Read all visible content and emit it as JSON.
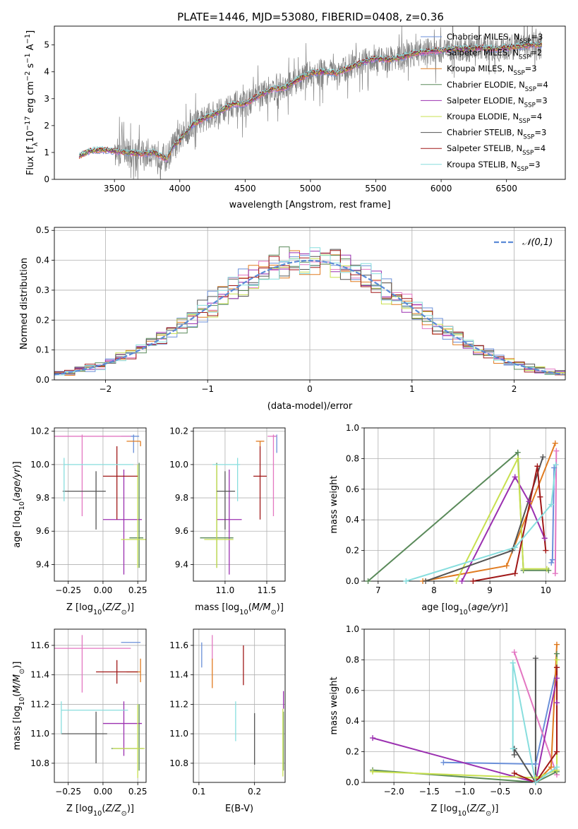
{
  "title": "PLATE=1446, MJD=53080, FIBERID=0408, z=0.36",
  "colors": {
    "Chabrier MILES": "#6a8fd8",
    "Salpeter MILES": "#e377c2",
    "Kroupa MILES": "#e07b20",
    "Chabrier ELODIE": "#5a8a5a",
    "Salpeter ELODIE": "#9b30b0",
    "Kroupa ELODIE": "#c8e050",
    "Chabrier STELIB": "#555555",
    "Salpeter STELIB": "#a01818",
    "Kroupa STELIB": "#88dede",
    "data": "#808080",
    "normal": "#5b8ad6"
  },
  "chart_data": [
    {
      "id": "spectrum",
      "type": "line",
      "title": "PLATE=1446, MJD=53080, FIBERID=0408, z=0.36",
      "xlabel": "wavelength [Angstrom, rest frame]",
      "ylabel": "Flux [f_λ 10^-17 erg cm^-2 s^-1 A^-1]",
      "xlim": [
        3040,
        6950
      ],
      "ylim": [
        0,
        5.7
      ],
      "xticks": [
        3500,
        4000,
        4500,
        5000,
        5500,
        6000,
        6500
      ],
      "yticks": [
        0,
        1,
        2,
        3,
        4,
        5
      ],
      "legend_position": "right",
      "legend": [
        "Chabrier MILES, N_SSP=3",
        "Salpeter MILES, N_SSP=2",
        "Kroupa MILES, N_SSP=3",
        "Chabrier ELODIE, N_SSP=4",
        "Salpeter ELODIE, N_SSP=3",
        "Kroupa ELODIE, N_SSP=4",
        "Chabrier STELIB, N_SSP=3",
        "Salpeter STELIB, N_SSP=4",
        "Kroupa STELIB, N_SSP=3"
      ],
      "model_continuum": {
        "x": [
          3230,
          3300,
          3400,
          3500,
          3600,
          3700,
          3800,
          3900,
          3950,
          4000,
          4100,
          4200,
          4300,
          4400,
          4500,
          4600,
          4700,
          4800,
          4900,
          5000,
          5100,
          5200,
          5300,
          5400,
          5500,
          5600,
          5700,
          5800,
          5900,
          6000,
          6100,
          6200,
          6300,
          6400,
          6500,
          6600,
          6700,
          6770
        ],
        "y": [
          0.85,
          1.05,
          1.1,
          1.05,
          1.0,
          0.95,
          1.0,
          0.75,
          1.25,
          1.45,
          2.05,
          2.3,
          2.5,
          2.8,
          2.8,
          3.1,
          3.35,
          3.4,
          3.7,
          3.95,
          4.0,
          3.95,
          4.15,
          4.35,
          4.5,
          4.45,
          4.55,
          4.7,
          4.75,
          4.8,
          4.85,
          4.85,
          4.9,
          4.85,
          4.9,
          4.95,
          5.0,
          5.0
        ]
      },
      "data_noise_start": 3500
    },
    {
      "id": "residuals",
      "type": "bar",
      "xlabel": "(data-model)/error",
      "ylabel": "Normed distribution",
      "xlim": [
        -2.5,
        2.5
      ],
      "ylim": [
        0,
        0.51
      ],
      "xticks": [
        -2,
        -1,
        0,
        1,
        2
      ],
      "yticks": [
        0.0,
        0.1,
        0.2,
        0.3,
        0.4,
        0.5
      ],
      "legend": [
        "𝒩(0,1)"
      ],
      "legend_position": "upper right",
      "bin_width": 0.1
    },
    {
      "id": "age-vs-Z",
      "type": "scatter",
      "xlabel": "Z [log10(Z/Z_sun)]",
      "ylabel": "age  [log10(age/yr)]",
      "xlim": [
        -0.35,
        0.31
      ],
      "ylim": [
        9.3,
        10.22
      ],
      "xticks": [
        -0.25,
        0.0,
        0.25
      ],
      "yticks": [
        9.4,
        9.6,
        9.8,
        10.0,
        10.2
      ],
      "points": [
        {
          "model": "Chabrier MILES",
          "x": 0.22,
          "y": 10.17,
          "xerr": [
            0.09,
            0.04
          ],
          "yerr": [
            0.1,
            0.01
          ]
        },
        {
          "model": "Salpeter MILES",
          "x": -0.15,
          "y": 10.17,
          "xerr": [
            0.23,
            0.35
          ],
          "yerr": [
            0.48,
            0.01
          ]
        },
        {
          "model": "Kroupa MILES",
          "x": 0.27,
          "y": 10.14,
          "xerr": [
            0.1,
            0.0
          ],
          "yerr": [
            0.03,
            0.0
          ]
        },
        {
          "model": "Chabrier ELODIE",
          "x": 0.26,
          "y": 9.56,
          "xerr": [
            0.07,
            0.03
          ],
          "yerr": [
            0.18,
            0.45
          ]
        },
        {
          "model": "Salpeter ELODIE",
          "x": 0.15,
          "y": 9.67,
          "xerr": [
            0.15,
            0.13
          ],
          "yerr": [
            0.33,
            0.3
          ]
        },
        {
          "model": "Kroupa ELODIE",
          "x": 0.25,
          "y": 9.55,
          "xerr": [
            0.12,
            0.06
          ],
          "yerr": [
            0.17,
            0.45
          ]
        },
        {
          "model": "Chabrier STELIB",
          "x": -0.05,
          "y": 9.84,
          "xerr": [
            0.24,
            0.07
          ],
          "yerr": [
            0.23,
            0.12
          ]
        },
        {
          "model": "Salpeter STELIB",
          "x": 0.1,
          "y": 9.93,
          "xerr": [
            0.1,
            0.15
          ],
          "yerr": [
            0.26,
            0.18
          ]
        },
        {
          "model": "Kroupa STELIB",
          "x": -0.28,
          "y": 10.0,
          "xerr": [
            0.0,
            0.5
          ],
          "yerr": [
            0.22,
            0.04
          ]
        }
      ]
    },
    {
      "id": "age-vs-mass",
      "type": "scatter",
      "xlabel": "mass [log10(M/M_sun)]",
      "ylabel": "",
      "xlim": [
        10.62,
        11.72
      ],
      "ylim": [
        9.3,
        10.22
      ],
      "xticks": [
        11.0,
        11.5
      ],
      "yticks": [
        9.4,
        9.6,
        9.8,
        10.0,
        10.2
      ],
      "points": [
        {
          "model": "Chabrier MILES",
          "x": 11.62,
          "y": 10.17,
          "xerr": [
            0.05,
            0.0
          ],
          "yerr": [
            0.1,
            0.01
          ]
        },
        {
          "model": "Salpeter MILES",
          "x": 11.58,
          "y": 10.17,
          "xerr": [
            0.07,
            0.04
          ],
          "yerr": [
            0.48,
            0.01
          ]
        },
        {
          "model": "Kroupa MILES",
          "x": 11.42,
          "y": 10.14,
          "xerr": [
            0.05,
            0.05
          ],
          "yerr": [
            0.03,
            0.0
          ]
        },
        {
          "model": "Chabrier ELODIE",
          "x": 10.9,
          "y": 9.56,
          "xerr": [
            0.2,
            0.2
          ],
          "yerr": [
            0.18,
            0.45
          ]
        },
        {
          "model": "Salpeter ELODIE",
          "x": 11.05,
          "y": 9.67,
          "xerr": [
            0.15,
            0.15
          ],
          "yerr": [
            0.33,
            0.3
          ]
        },
        {
          "model": "Kroupa ELODIE",
          "x": 10.9,
          "y": 9.55,
          "xerr": [
            0.15,
            0.2
          ],
          "yerr": [
            0.17,
            0.45
          ]
        },
        {
          "model": "Chabrier STELIB",
          "x": 11.0,
          "y": 9.84,
          "xerr": [
            0.1,
            0.12
          ],
          "yerr": [
            0.23,
            0.12
          ]
        },
        {
          "model": "Salpeter STELIB",
          "x": 11.42,
          "y": 9.93,
          "xerr": [
            0.08,
            0.08
          ],
          "yerr": [
            0.26,
            0.18
          ]
        },
        {
          "model": "Kroupa STELIB",
          "x": 11.15,
          "y": 10.0,
          "xerr": [
            0.3,
            0.03
          ],
          "yerr": [
            0.22,
            0.04
          ]
        }
      ]
    },
    {
      "id": "weight-vs-age",
      "type": "line",
      "xlabel": "age  [log10(age/yr)]",
      "ylabel": "mass weight",
      "xlim": [
        6.75,
        10.35
      ],
      "ylim": [
        0,
        1
      ],
      "xticks": [
        7,
        8,
        9,
        10
      ],
      "yticks": [
        0.0,
        0.2,
        0.4,
        0.6,
        0.8,
        1.0
      ],
      "series": [
        {
          "model": "Chabrier MILES",
          "x": [
            10.1,
            10.12,
            10.15
          ],
          "y": [
            0.12,
            0.14,
            0.74
          ]
        },
        {
          "model": "Salpeter MILES",
          "x": [
            10.17,
            10.19
          ],
          "y": [
            0.05,
            0.85
          ]
        },
        {
          "model": "Kroupa MILES",
          "x": [
            7.8,
            9.3,
            10.17
          ],
          "y": [
            0.0,
            0.1,
            0.9
          ]
        },
        {
          "model": "Chabrier ELODIE",
          "x": [
            6.82,
            9.5,
            9.6,
            10.05
          ],
          "y": [
            0.0,
            0.84,
            0.07,
            0.07
          ]
        },
        {
          "model": "Salpeter ELODIE",
          "x": [
            8.5,
            9.45,
            9.7,
            9.98
          ],
          "y": [
            0.0,
            0.68,
            0.52,
            0.28
          ]
        },
        {
          "model": "Kroupa ELODIE",
          "x": [
            8.4,
            9.5,
            9.6,
            10.02
          ],
          "y": [
            0.0,
            0.8,
            0.08,
            0.08
          ]
        },
        {
          "model": "Chabrier STELIB",
          "x": [
            7.85,
            9.4,
            9.95
          ],
          "y": [
            0.0,
            0.2,
            0.81
          ]
        },
        {
          "model": "Salpeter STELIB",
          "x": [
            8.7,
            9.45,
            9.85,
            9.9,
            10.0
          ],
          "y": [
            0.0,
            0.05,
            0.75,
            0.55,
            0.2
          ]
        },
        {
          "model": "Kroupa STELIB",
          "x": [
            7.5,
            9.45,
            10.1,
            10.18
          ],
          "y": [
            0.0,
            0.22,
            0.5,
            0.76
          ]
        }
      ]
    },
    {
      "id": "mass-vs-Z",
      "type": "scatter",
      "xlabel": "Z [log10(Z/Z_sun)]",
      "ylabel": "mass [log10(M/M_sun)]",
      "xlim": [
        -0.35,
        0.31
      ],
      "ylim": [
        10.67,
        11.71
      ],
      "xticks": [
        -0.25,
        0.0,
        0.25
      ],
      "yticks": [
        10.8,
        11.0,
        11.2,
        11.4,
        11.6
      ],
      "points": [
        {
          "model": "Chabrier MILES",
          "x": 0.22,
          "y": 11.62,
          "xerr": [
            0.09,
            0.05
          ],
          "yerr": [
            0.0,
            0.0
          ]
        },
        {
          "model": "Salpeter MILES",
          "x": -0.15,
          "y": 11.58,
          "xerr": [
            0.25,
            0.35
          ],
          "yerr": [
            0.3,
            0.09
          ]
        },
        {
          "model": "Kroupa MILES",
          "x": 0.27,
          "y": 11.42,
          "xerr": [
            0.1,
            0.0
          ],
          "yerr": [
            0.07,
            0.09
          ]
        },
        {
          "model": "Chabrier ELODIE",
          "x": 0.26,
          "y": 10.9,
          "xerr": [
            0.2,
            0.03
          ],
          "yerr": [
            0.15,
            0.3
          ]
        },
        {
          "model": "Salpeter ELODIE",
          "x": 0.15,
          "y": 11.07,
          "xerr": [
            0.15,
            0.13
          ],
          "yerr": [
            0.22,
            0.15
          ]
        },
        {
          "model": "Kroupa ELODIE",
          "x": 0.25,
          "y": 10.9,
          "xerr": [
            0.18,
            0.05
          ],
          "yerr": [
            0.2,
            0.3
          ]
        },
        {
          "model": "Chabrier STELIB",
          "x": -0.05,
          "y": 11.0,
          "xerr": [
            0.25,
            0.08
          ],
          "yerr": [
            0.2,
            0.15
          ]
        },
        {
          "model": "Salpeter STELIB",
          "x": 0.1,
          "y": 11.42,
          "xerr": [
            0.15,
            0.15
          ],
          "yerr": [
            0.08,
            0.08
          ]
        },
        {
          "model": "Kroupa STELIB",
          "x": -0.3,
          "y": 11.16,
          "xerr": [
            0.0,
            0.48
          ],
          "yerr": [
            0.16,
            0.06
          ]
        }
      ]
    },
    {
      "id": "mass-vs-EBV",
      "type": "scatter",
      "xlabel": "E(B-V)",
      "ylabel": "",
      "xlim": [
        0.09,
        0.255
      ],
      "ylim": [
        10.67,
        11.71
      ],
      "xticks": [
        0.1,
        0.2
      ],
      "yticks": [
        10.8,
        11.0,
        11.2,
        11.4,
        11.6
      ],
      "points": [
        {
          "model": "Chabrier MILES",
          "x": 0.105,
          "y": 11.53,
          "xerr": [
            0,
            0
          ],
          "yerr": [
            0.08,
            0.09
          ]
        },
        {
          "model": "Salpeter MILES",
          "x": 0.124,
          "y": 11.55,
          "xerr": [
            0,
            0
          ],
          "yerr": [
            0.05,
            0.12
          ]
        },
        {
          "model": "Kroupa MILES",
          "x": 0.124,
          "y": 11.41,
          "xerr": [
            0,
            0
          ],
          "yerr": [
            0.1,
            0.1
          ]
        },
        {
          "model": "Chabrier ELODIE",
          "x": 0.252,
          "y": 10.95,
          "xerr": [
            0,
            0
          ],
          "yerr": [
            0.2,
            0.2
          ]
        },
        {
          "model": "Salpeter ELODIE",
          "x": 0.252,
          "y": 11.23,
          "xerr": [
            0,
            0
          ],
          "yerr": [
            0.06,
            0.06
          ]
        },
        {
          "model": "Kroupa ELODIE",
          "x": 0.251,
          "y": 10.94,
          "xerr": [
            0,
            0
          ],
          "yerr": [
            0.23,
            0.23
          ]
        },
        {
          "model": "Chabrier STELIB",
          "x": 0.2,
          "y": 10.97,
          "xerr": [
            0,
            0
          ],
          "yerr": [
            0.18,
            0.17
          ]
        },
        {
          "model": "Salpeter STELIB",
          "x": 0.18,
          "y": 11.46,
          "xerr": [
            0,
            0
          ],
          "yerr": [
            0.13,
            0.14
          ]
        },
        {
          "model": "Kroupa STELIB",
          "x": 0.166,
          "y": 11.09,
          "xerr": [
            0,
            0
          ],
          "yerr": [
            0.14,
            0.13
          ]
        }
      ]
    },
    {
      "id": "weight-vs-Z",
      "type": "line",
      "xlabel": "Z [log10(Z/Z_sun)]",
      "ylabel": "mass weight",
      "xlim": [
        -2.42,
        0.42
      ],
      "ylim": [
        0,
        1
      ],
      "xticks": [
        -2.0,
        -1.5,
        -1.0,
        -0.5,
        0.0
      ],
      "yticks": [
        0.0,
        0.2,
        0.4,
        0.6,
        0.8,
        1.0
      ],
      "series": [
        {
          "model": "Chabrier MILES",
          "x": [
            -1.3,
            0.0,
            0.3
          ],
          "y": [
            0.13,
            0.12,
            0.75
          ]
        },
        {
          "model": "Salpeter MILES",
          "x": [
            -0.3,
            0.3
          ],
          "y": [
            0.85,
            0.05
          ]
        },
        {
          "model": "Kroupa MILES",
          "x": [
            0.0,
            0.22,
            0.3
          ],
          "y": [
            0.0,
            0.1,
            0.9
          ]
        },
        {
          "model": "Chabrier ELODIE",
          "x": [
            -2.3,
            0.0,
            0.3,
            0.3
          ],
          "y": [
            0.08,
            0.0,
            0.07,
            0.84
          ]
        },
        {
          "model": "Salpeter ELODIE",
          "x": [
            -2.3,
            0.0,
            0.3,
            0.3
          ],
          "y": [
            0.29,
            0.0,
            0.68,
            0.52
          ]
        },
        {
          "model": "Kroupa ELODIE",
          "x": [
            -2.3,
            0.0,
            0.3,
            0.3
          ],
          "y": [
            0.07,
            0.03,
            0.08,
            0.8
          ]
        },
        {
          "model": "Chabrier STELIB",
          "x": [
            -0.3,
            -0.3,
            0.0,
            0.0
          ],
          "y": [
            0.18,
            0.22,
            0.0,
            0.81
          ]
        },
        {
          "model": "Salpeter STELIB",
          "x": [
            -0.3,
            0.0,
            0.3,
            0.3
          ],
          "y": [
            0.06,
            0.0,
            0.2,
            0.75
          ]
        },
        {
          "model": "Kroupa STELIB",
          "x": [
            -0.32,
            -0.32,
            0.0,
            0.3
          ],
          "y": [
            0.22,
            0.78,
            0.0,
            0.1
          ]
        }
      ]
    }
  ]
}
